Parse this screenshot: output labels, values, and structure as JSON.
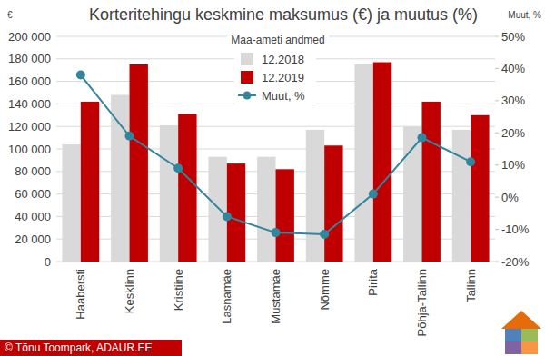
{
  "chart_data": {
    "type": "bar",
    "title": "Korteritehingu keskmine maksumus (€) ja muutus (%)",
    "subtitle": "Maa-ameti andmed",
    "y_label": "€",
    "y2_label": "Muut, %",
    "source": "© Tõnu Toompark, ADAUR.EE",
    "categories": [
      "Haabersti",
      "Kesklinn",
      "Kristiine",
      "Lasnamäe",
      "Mustamäe",
      "Nõmme",
      "Pirita",
      "Põhja-Tallinn",
      "Tallinn"
    ],
    "series": [
      {
        "name": "12.2018",
        "type": "bar",
        "color": "#d9d9d9",
        "values": [
          104000,
          148000,
          121000,
          93000,
          93000,
          117000,
          175000,
          120000,
          117000
        ]
      },
      {
        "name": "12.2019",
        "type": "bar",
        "color": "#c00000",
        "values": [
          142000,
          175000,
          131000,
          87000,
          82000,
          103000,
          177000,
          142000,
          130000
        ]
      },
      {
        "name": "Muut, %",
        "type": "line",
        "color": "#31859c",
        "marker": "circle",
        "axis": "y2",
        "values": [
          38,
          19,
          9,
          -6,
          -11,
          -11.5,
          1,
          18.5,
          11
        ]
      }
    ],
    "ylim": [
      0,
      200000
    ],
    "yticks": [
      0,
      {
        "value": 20000,
        "label": "20 000"
      },
      {
        "value": 40000,
        "label": "40 000"
      },
      {
        "value": 60000,
        "label": "60 000"
      },
      {
        "value": 80000,
        "label": "80 000"
      },
      {
        "value": 100000,
        "label": "100 000"
      },
      {
        "value": 120000,
        "label": "120 000"
      },
      {
        "value": 140000,
        "label": "140 000"
      },
      {
        "value": 160000,
        "label": "160 000"
      },
      {
        "value": 180000,
        "label": "180 000"
      },
      {
        "value": 200000,
        "label": "200 000"
      }
    ],
    "y2lim": [
      -20,
      50
    ],
    "y2ticks": [
      {
        "value": -20,
        "label": "-20%"
      },
      {
        "value": -10,
        "label": "-10%"
      },
      {
        "value": 0,
        "label": "0%"
      },
      {
        "value": 10,
        "label": "10%"
      },
      {
        "value": 20,
        "label": "20%"
      },
      {
        "value": 30,
        "label": "30%"
      },
      {
        "value": 40,
        "label": "40%"
      },
      {
        "value": 50,
        "label": "50%"
      }
    ],
    "grid": true,
    "legend": "top"
  }
}
